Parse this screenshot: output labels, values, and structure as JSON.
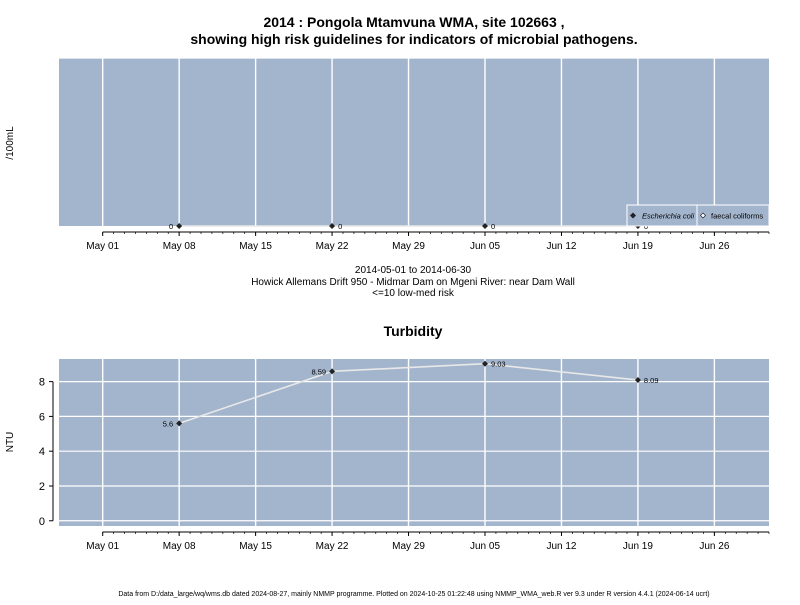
{
  "page": {
    "title_line1": "2014 : Pongola Mtamvuna WMA, site 102663 ,",
    "title_line2": "showing high risk guidelines for indicators of microbial pathogens.",
    "caption_line1": "2014-05-01 to 2014-06-30",
    "caption_line2": "Howick Allemans Drift 950 - Midmar Dam on Mgeni River: near Dam Wall",
    "caption_line3": "<=10 low-med risk",
    "footer": "Data from D:/data_large/wq/wms.db dated 2024-08-27, mainly NMMP programme. Plotted on 2024-10-25 01:22:48 using NMMP_WMA_web.R ver 9.3 under R version 4.4.1 (2024-06-14 ucrt)"
  },
  "colors": {
    "panel_bg": "#a3b5cc",
    "grid": "#ffffff",
    "line": "#e8e8e8",
    "point": "#222222"
  },
  "chart_data": [
    {
      "type": "line",
      "title": "",
      "xlabel": "",
      "ylabel": "/100mL",
      "x_ticks": [
        "May 01",
        "May 08",
        "May 15",
        "May 22",
        "May 29",
        "Jun 05",
        "Jun 12",
        "Jun 19",
        "Jun 26"
      ],
      "x_tick_dates": [
        "2014-05-01",
        "2014-05-08",
        "2014-05-15",
        "2014-05-22",
        "2014-05-29",
        "2014-06-05",
        "2014-06-12",
        "2014-06-19",
        "2014-06-26"
      ],
      "xlim": [
        "2014-04-27",
        "2014-07-01"
      ],
      "ylim": [
        0,
        1
      ],
      "legend_position": "bottom-right",
      "legend": [
        {
          "label": "Escherichia coli",
          "marker": "filled-diamond"
        },
        {
          "label": "faecal coliforms",
          "marker": "open-diamond"
        }
      ],
      "series": [
        {
          "name": "Escherichia coli",
          "x": [
            "2014-05-08",
            "2014-05-22",
            "2014-06-05",
            "2014-06-19"
          ],
          "values": [
            0,
            0,
            0,
            0
          ],
          "labels": [
            "0",
            "0",
            "0",
            "0"
          ]
        }
      ]
    },
    {
      "type": "line",
      "title": "Turbidity",
      "xlabel": "",
      "ylabel": "NTU",
      "x_ticks": [
        "May 01",
        "May 08",
        "May 15",
        "May 22",
        "May 29",
        "Jun 05",
        "Jun 12",
        "Jun 19",
        "Jun 26"
      ],
      "x_tick_dates": [
        "2014-05-01",
        "2014-05-08",
        "2014-05-15",
        "2014-05-22",
        "2014-05-29",
        "2014-06-05",
        "2014-06-12",
        "2014-06-19",
        "2014-06-26"
      ],
      "xlim": [
        "2014-04-27",
        "2014-07-01"
      ],
      "ylim": [
        -0.3,
        9.3
      ],
      "y_ticks": [
        0,
        2,
        4,
        6,
        8
      ],
      "series": [
        {
          "name": "",
          "x": [
            "2014-05-08",
            "2014-05-22",
            "2014-06-05",
            "2014-06-19"
          ],
          "values": [
            5.6,
            8.59,
            9.03,
            8.09
          ],
          "labels": [
            "5.6",
            "8.59",
            "9.03",
            "8.09"
          ]
        }
      ]
    }
  ]
}
